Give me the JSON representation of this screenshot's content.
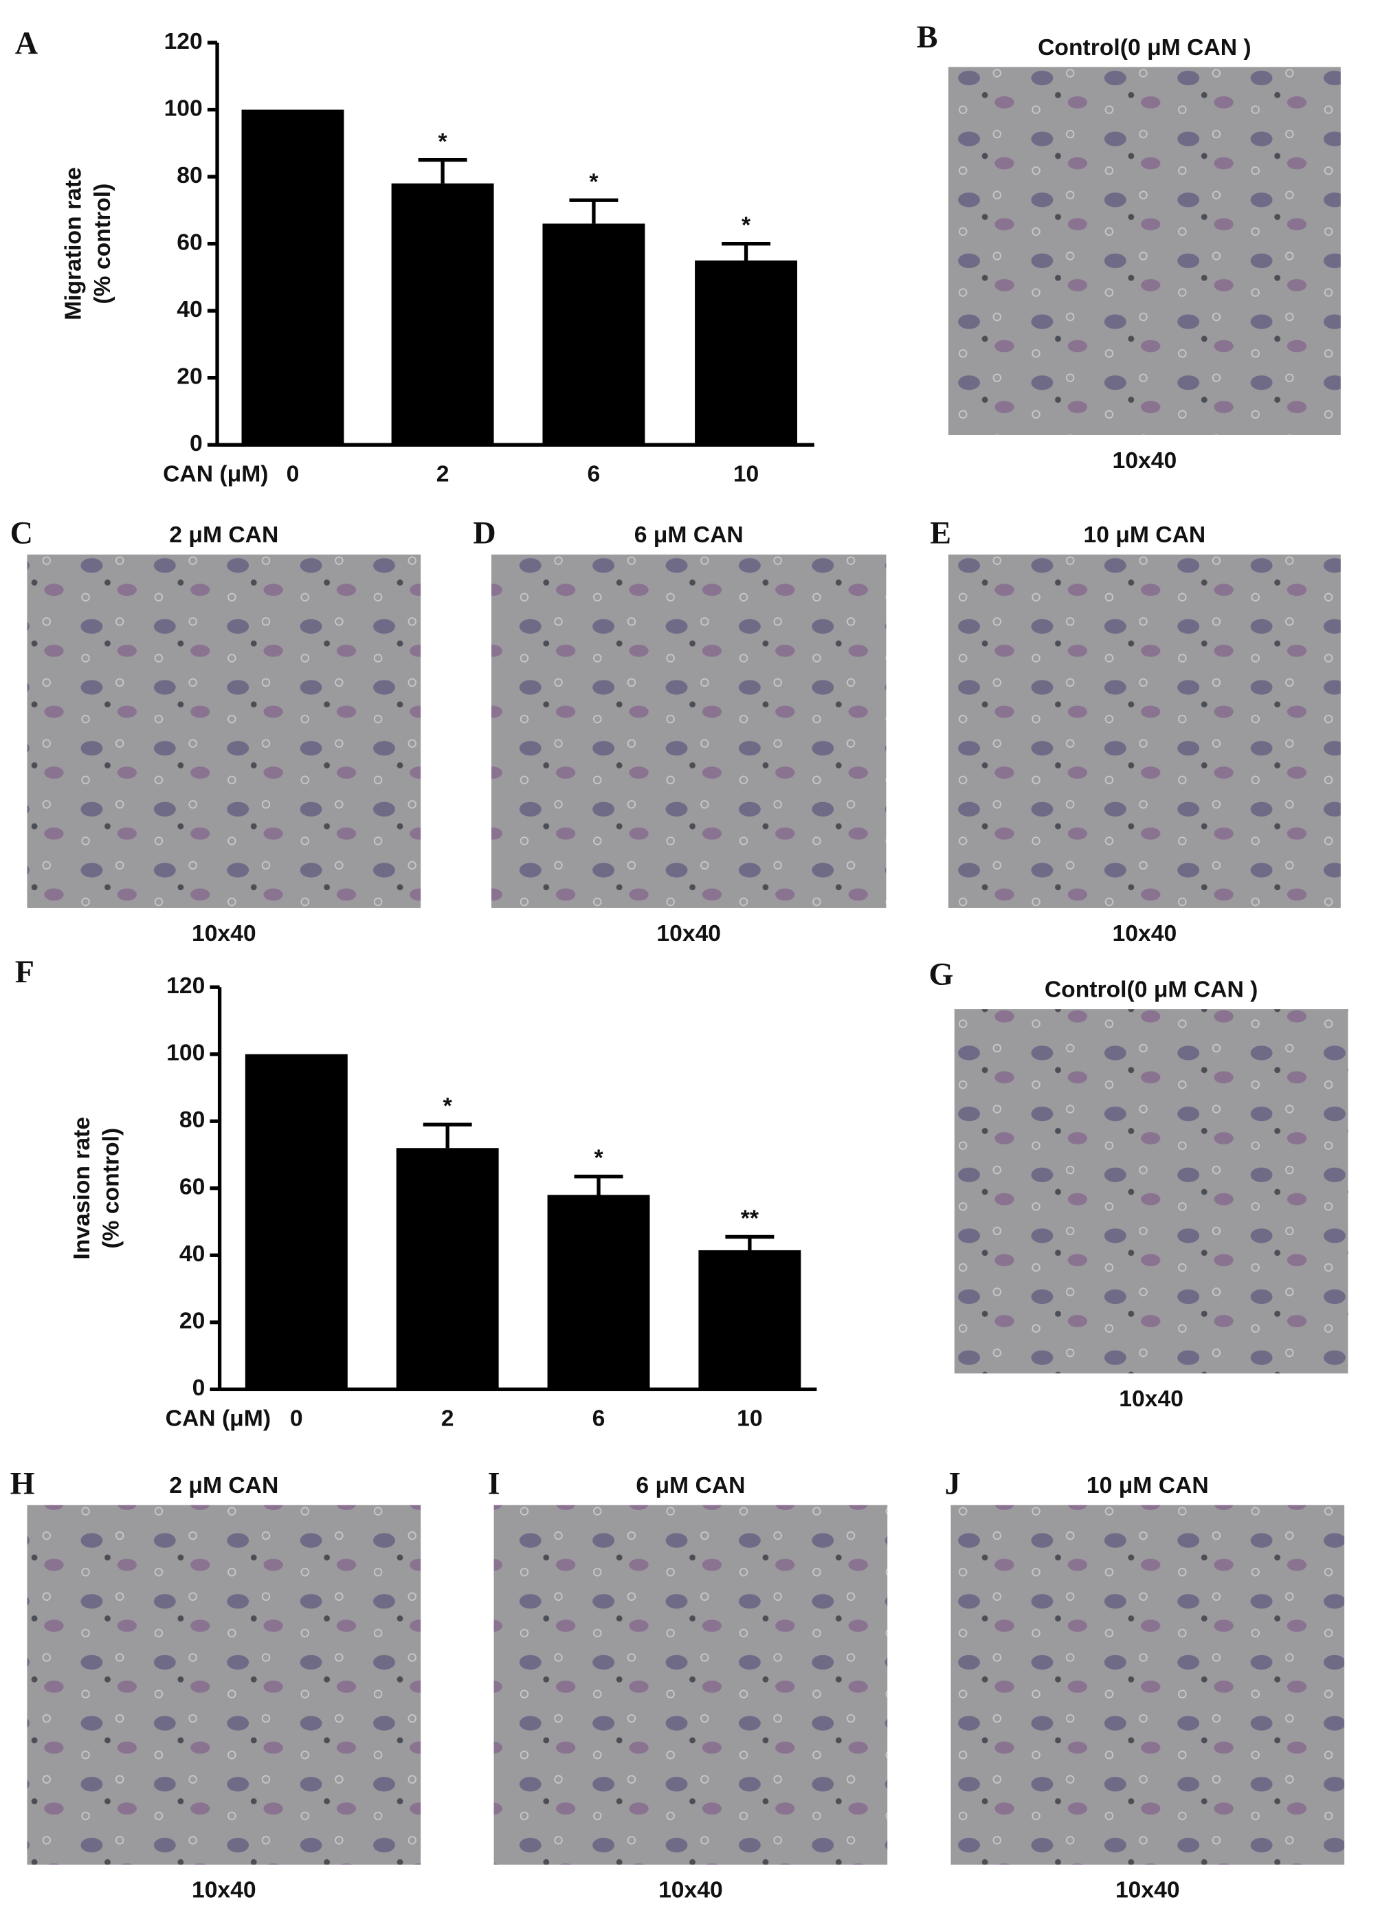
{
  "chart_data": [
    {
      "type": "bar",
      "panel": "A",
      "ylabel": [
        "Migration rate",
        "(% control)"
      ],
      "xlabel": "CAN (μM)",
      "categories": [
        "0",
        "2",
        "6",
        "10"
      ],
      "values": [
        100,
        78,
        66,
        55
      ],
      "errors": [
        0,
        7,
        7,
        5
      ],
      "annotations": [
        null,
        "*",
        "*",
        "*"
      ],
      "color": "#000000",
      "ylim": [
        0,
        120
      ],
      "yticks": [
        0,
        20,
        40,
        60,
        80,
        100,
        120
      ]
    },
    {
      "type": "bar",
      "panel": "F",
      "ylabel": [
        "Invasion rate",
        "(% control)"
      ],
      "xlabel": "CAN (μM)",
      "categories": [
        "0",
        "2",
        "6",
        "10"
      ],
      "values": [
        100,
        72,
        58,
        41.5
      ],
      "errors": [
        0,
        7,
        5.5,
        4
      ],
      "annotations": [
        null,
        "*",
        "*",
        "**"
      ],
      "color": "#000000",
      "ylim": [
        0,
        120
      ],
      "yticks": [
        0,
        20,
        40,
        60,
        80,
        100,
        120
      ]
    }
  ],
  "panels": [
    {
      "letter": "B",
      "title": "Control(0 μM CAN )",
      "caption": "10x40"
    },
    {
      "letter": "C",
      "title": "2 μM CAN",
      "caption": "10x40"
    },
    {
      "letter": "D",
      "title": "6 μM CAN",
      "caption": "10x40"
    },
    {
      "letter": "E",
      "title": "10 μM CAN",
      "caption": "10x40"
    },
    {
      "letter": "G",
      "title": "Control(0 μM CAN )",
      "caption": "10x40"
    },
    {
      "letter": "H",
      "title": "2 μM CAN",
      "caption": "10x40"
    },
    {
      "letter": "I",
      "title": "6 μM CAN",
      "caption": "10x40"
    },
    {
      "letter": "J",
      "title": "10 μM CAN",
      "caption": "10x40"
    }
  ]
}
